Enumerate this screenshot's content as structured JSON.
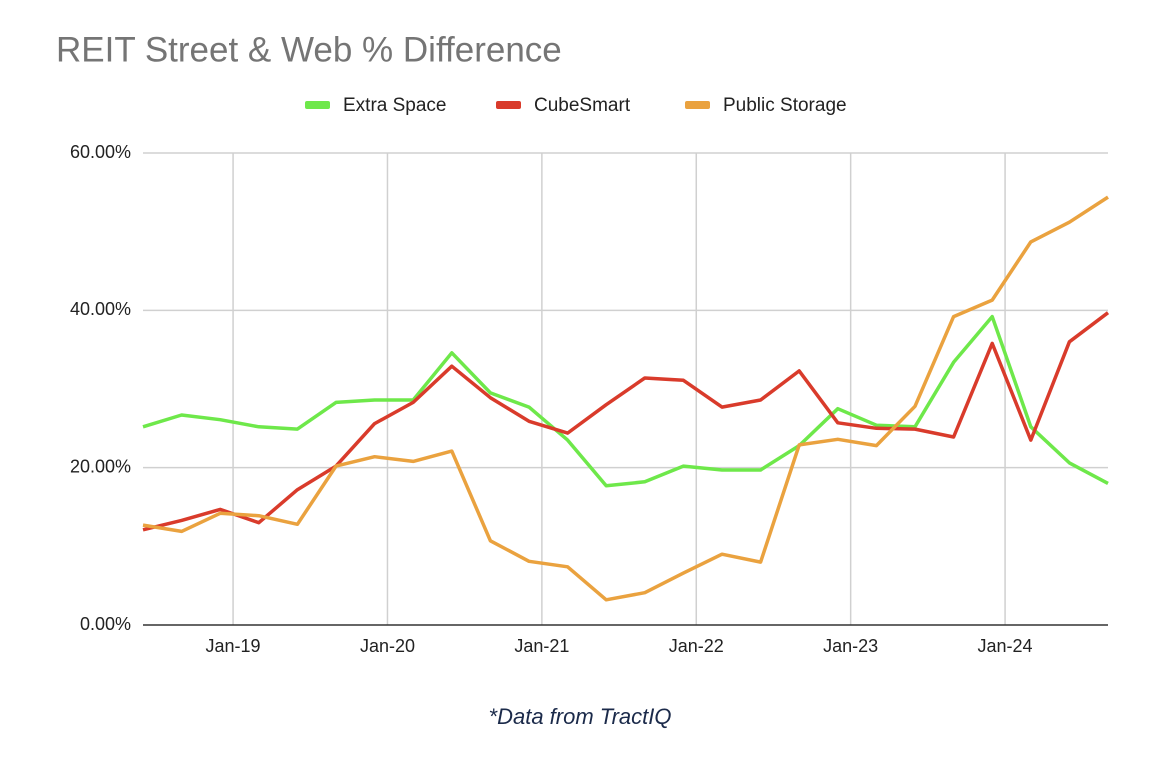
{
  "chart_data": {
    "type": "line",
    "title": "REIT Street & Web % Difference",
    "note": "*Data from TractIQ",
    "legend": "top",
    "grid": true,
    "x": [
      "2018-06",
      "2018-09",
      "2018-12",
      "2019-03",
      "2019-06",
      "2019-09",
      "2019-12",
      "2020-03",
      "2020-06",
      "2020-09",
      "2020-12",
      "2021-03",
      "2021-06",
      "2021-09",
      "2021-12",
      "2022-03",
      "2022-06",
      "2022-09",
      "2022-12",
      "2023-03",
      "2023-06",
      "2023-09",
      "2023-12",
      "2024-03",
      "2024-06",
      "2024-09"
    ],
    "xlim": [
      "2018-06",
      "2024-09"
    ],
    "xticks": [
      {
        "value": "2019-01",
        "label": "Jan-19"
      },
      {
        "value": "2020-01",
        "label": "Jan-20"
      },
      {
        "value": "2021-01",
        "label": "Jan-21"
      },
      {
        "value": "2022-01",
        "label": "Jan-22"
      },
      {
        "value": "2023-01",
        "label": "Jan-23"
      },
      {
        "value": "2024-01",
        "label": "Jan-24"
      }
    ],
    "ylim": [
      0,
      60
    ],
    "yticks": [
      {
        "value": 0,
        "label": "0.00%"
      },
      {
        "value": 20,
        "label": "20.00%"
      },
      {
        "value": 40,
        "label": "40.00%"
      },
      {
        "value": 60,
        "label": "60.00%"
      }
    ],
    "series": [
      {
        "name": "Extra Space",
        "color": "#6ee84a",
        "values": [
          25.2,
          26.7,
          26.1,
          25.2,
          24.9,
          28.3,
          28.6,
          28.6,
          34.6,
          29.5,
          27.7,
          23.5,
          17.7,
          18.2,
          20.2,
          19.7,
          19.7,
          22.8,
          27.5,
          25.4,
          25.2,
          33.4,
          39.2,
          25.2,
          20.6,
          18.0
        ]
      },
      {
        "name": "CubeSmart",
        "color": "#d93b2b",
        "values": [
          12.1,
          13.3,
          14.7,
          13.0,
          17.2,
          20.2,
          25.6,
          28.3,
          32.9,
          28.9,
          25.9,
          24.4,
          28.0,
          31.4,
          31.1,
          27.7,
          28.6,
          32.3,
          25.7,
          25.0,
          24.9,
          23.9,
          35.8,
          23.5,
          36.0,
          39.7
        ]
      },
      {
        "name": "Public Storage",
        "color": "#eaa23f",
        "values": [
          12.7,
          11.9,
          14.2,
          13.9,
          12.8,
          20.2,
          21.4,
          20.8,
          22.1,
          10.7,
          8.1,
          7.4,
          3.2,
          4.1,
          6.6,
          9.0,
          8.0,
          22.9,
          23.6,
          22.8,
          27.8,
          39.2,
          41.3,
          48.7,
          51.2,
          54.4
        ]
      }
    ]
  }
}
